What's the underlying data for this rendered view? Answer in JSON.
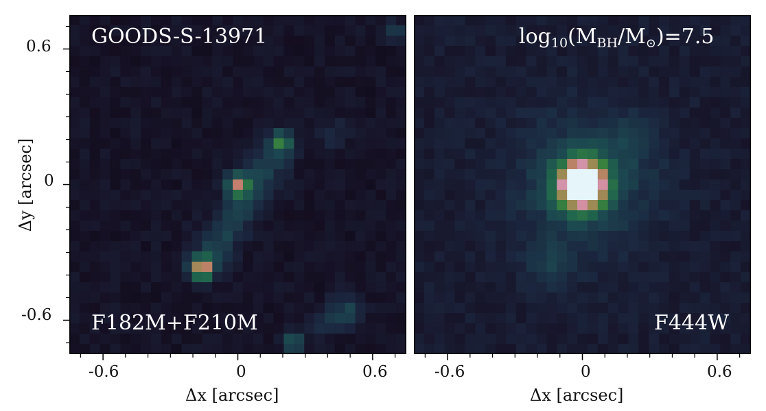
{
  "chart_data": [
    {
      "type": "heatmap",
      "panel": "left",
      "object_label": "GOODS-S-13971",
      "filter_label": "F182M+F210M",
      "xlabel": "Δx [arcsec]",
      "ylabel": "Δy [arcsec]",
      "xlim": [
        -0.75,
        0.75
      ],
      "ylim": [
        -0.75,
        0.75
      ],
      "xticks": [
        "-0.6",
        "0",
        "0.6"
      ],
      "yticks": [
        "0.6",
        "0",
        "-0.6"
      ],
      "colormap": "cubehelix",
      "features": [
        {
          "kind": "knot",
          "x": 0.0,
          "y": 0.0
        },
        {
          "kind": "knot",
          "x": -0.16,
          "y": -0.37
        },
        {
          "kind": "knot",
          "x": 0.19,
          "y": 0.19
        },
        {
          "kind": "knot",
          "x": 0.25,
          "y": -0.7
        },
        {
          "kind": "clump",
          "x": 0.48,
          "y": -0.56
        }
      ]
    },
    {
      "type": "heatmap",
      "panel": "right",
      "mass_label_prefix": "log",
      "mass_label_sub1": "10",
      "mass_label_mid": "(M",
      "mass_label_sub2": "BH",
      "mass_label_mid2": "/M",
      "mass_label_sun": "⊙",
      "mass_label_end": ")=7.5",
      "filter_label": "F444W",
      "xlabel": "Δx [arcsec]",
      "xlim": [
        -0.75,
        0.75
      ],
      "ylim": [
        -0.75,
        0.75
      ],
      "xticks": [
        "-0.6",
        "0",
        "0.6"
      ],
      "colormap": "cubehelix",
      "features": [
        {
          "kind": "point_source",
          "x": 0.0,
          "y": 0.0
        },
        {
          "kind": "extended_halo",
          "x": 0.0,
          "y": 0.0
        }
      ]
    }
  ]
}
